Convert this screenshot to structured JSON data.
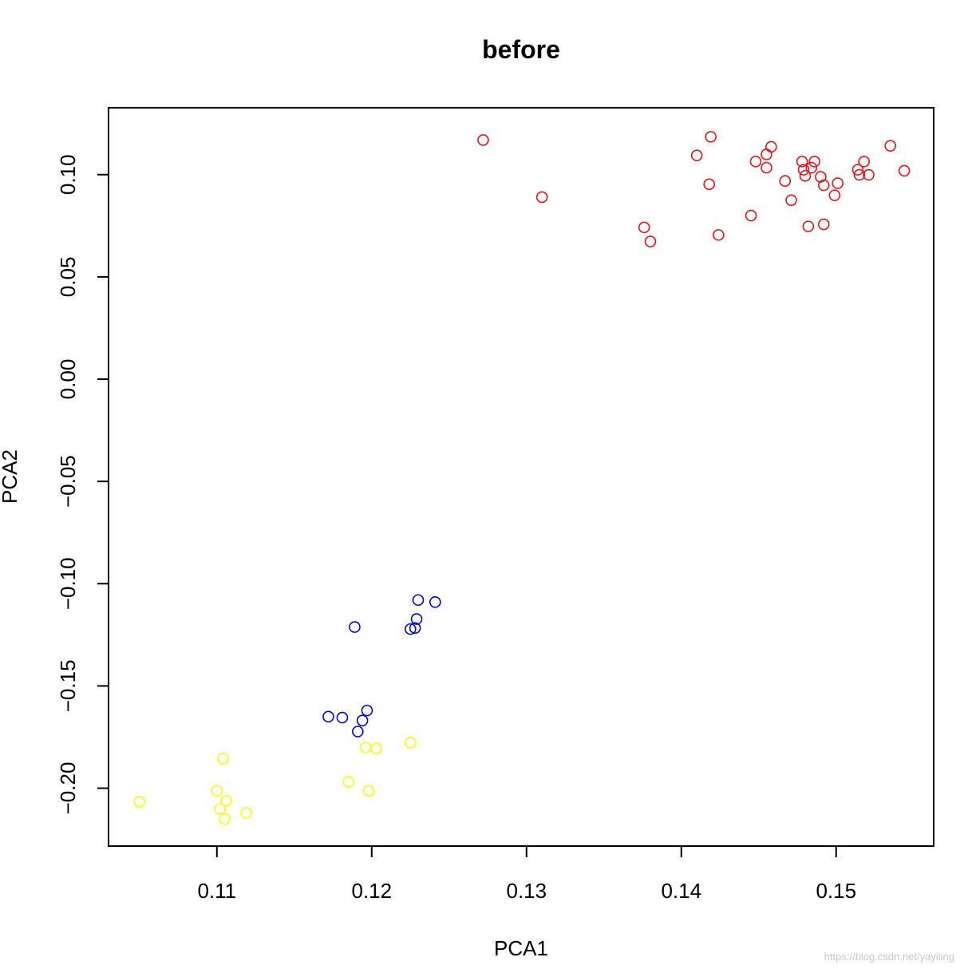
{
  "chart_data": {
    "type": "scatter",
    "title": "before",
    "xlabel": "PCA1",
    "ylabel": "PCA2",
    "xlim": [
      0.103,
      0.1563
    ],
    "ylim": [
      -0.2283,
      0.1327
    ],
    "x_ticks": [
      0.11,
      0.12,
      0.13,
      0.14,
      0.15
    ],
    "x_tick_labels": [
      "0.11",
      "0.12",
      "0.13",
      "0.14",
      "0.15"
    ],
    "y_ticks": [
      0.1,
      0.05,
      0.0,
      -0.05,
      -0.1,
      -0.15,
      -0.2
    ],
    "y_tick_labels": [
      "0.10",
      "0.05",
      "0.00",
      "−0.05",
      "−0.10",
      "−0.15",
      "−0.20"
    ],
    "grid": false,
    "series": [
      {
        "color": "#e8121a",
        "points": [
          [
            0.1272,
            0.1169
          ],
          [
            0.131,
            0.089
          ],
          [
            0.1376,
            0.0742
          ],
          [
            0.138,
            0.0673
          ],
          [
            0.141,
            0.1094
          ],
          [
            0.1418,
            0.0953
          ],
          [
            0.1419,
            0.1185
          ],
          [
            0.1424,
            0.0705
          ],
          [
            0.1445,
            0.08
          ],
          [
            0.1448,
            0.1064
          ],
          [
            0.1455,
            0.1099
          ],
          [
            0.1455,
            0.1034
          ],
          [
            0.1458,
            0.1136
          ],
          [
            0.1467,
            0.0969
          ],
          [
            0.1471,
            0.0875
          ],
          [
            0.1478,
            0.1064
          ],
          [
            0.1479,
            0.1024
          ],
          [
            0.148,
            0.0994
          ],
          [
            0.1482,
            0.0747
          ],
          [
            0.1484,
            0.1034
          ],
          [
            0.1486,
            0.1064
          ],
          [
            0.149,
            0.0989
          ],
          [
            0.1492,
            0.0948
          ],
          [
            0.1492,
            0.0757
          ],
          [
            0.1499,
            0.0899
          ],
          [
            0.1501,
            0.0958
          ],
          [
            0.1514,
            0.1024
          ],
          [
            0.1515,
            0.0999
          ],
          [
            0.1518,
            0.1064
          ],
          [
            0.1521,
            0.0999
          ],
          [
            0.1535,
            0.1141
          ],
          [
            0.1544,
            0.1019
          ]
        ]
      },
      {
        "color": "#0000e6",
        "points": [
          [
            0.1189,
            -0.1212
          ],
          [
            0.1225,
            -0.1222
          ],
          [
            0.1228,
            -0.1217
          ],
          [
            0.1229,
            -0.1173
          ],
          [
            0.123,
            -0.108
          ],
          [
            0.1241,
            -0.109
          ],
          [
            0.1172,
            -0.165
          ],
          [
            0.1181,
            -0.1655
          ],
          [
            0.1191,
            -0.1723
          ],
          [
            0.1194,
            -0.1669
          ],
          [
            0.1197,
            -0.162
          ]
        ]
      },
      {
        "color": "#ffff00",
        "points": [
          [
            0.105,
            -0.2067
          ],
          [
            0.11,
            -0.2013
          ],
          [
            0.1102,
            -0.2101
          ],
          [
            0.1104,
            -0.1855
          ],
          [
            0.1105,
            -0.215
          ],
          [
            0.1106,
            -0.2062
          ],
          [
            0.1119,
            -0.2121
          ],
          [
            0.1185,
            -0.1969
          ],
          [
            0.1196,
            -0.1801
          ],
          [
            0.1198,
            -0.2013
          ],
          [
            0.1203,
            -0.1806
          ],
          [
            0.1225,
            -0.1777
          ]
        ]
      }
    ]
  },
  "watermark": "https://blog.csdn.net/yayiling"
}
